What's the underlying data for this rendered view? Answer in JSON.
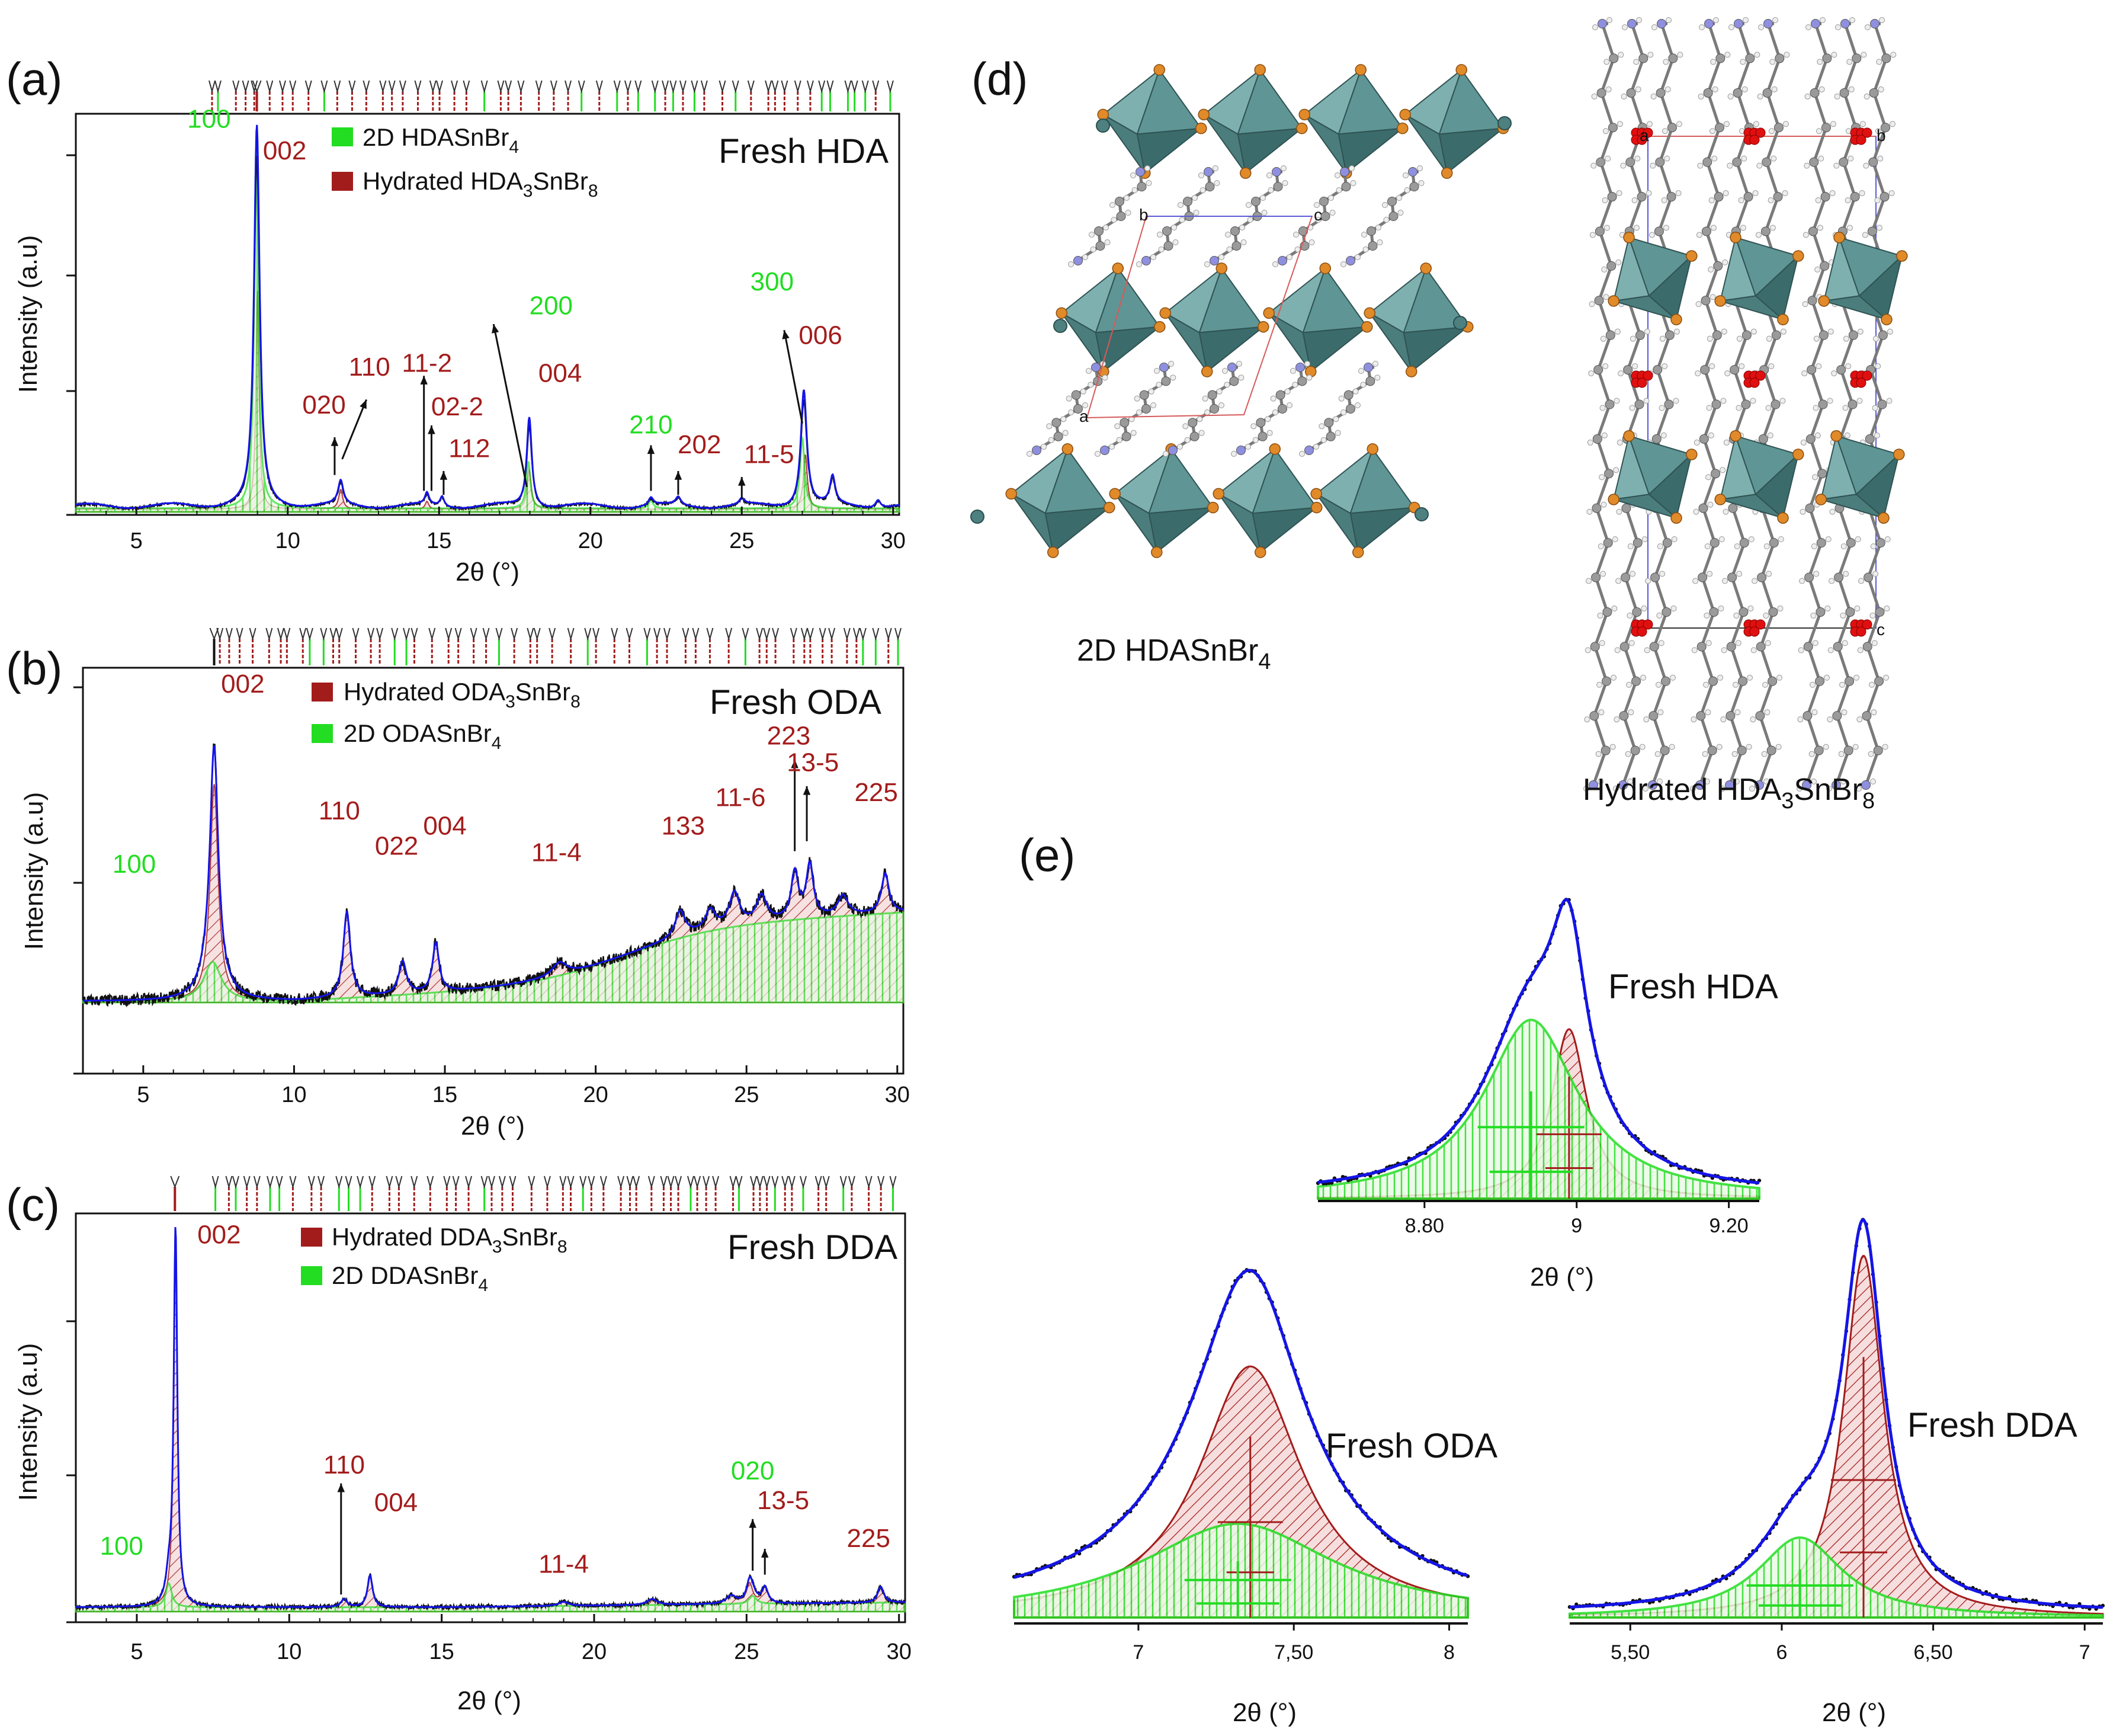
{
  "chart_data": [
    {
      "panel": "(a)",
      "type": "line",
      "title": "Fresh HDA",
      "xlabel": "2θ (°)",
      "ylabel": "Intensity (a.u)",
      "xlim": [
        3,
        30.2
      ],
      "ylim": [
        0,
        1.0
      ],
      "xticks": [
        "5",
        "10",
        "15",
        "20",
        "25",
        "30"
      ],
      "legend": {
        "position": "top-center",
        "items": [
          {
            "label": "2D HDASnBr",
            "sub": "4",
            "tail": "",
            "color": "#22dd22"
          },
          {
            "label": "Hydrated HDA",
            "sub": "3",
            "tail": "SnBr",
            "sub2": "8",
            "color": "#a31c1c"
          }
        ]
      },
      "peaks": [
        {
          "x": 8.98,
          "h": 0.97,
          "w": 0.11,
          "phase": "both"
        },
        {
          "x": 11.75,
          "h": 0.06,
          "w": 0.1,
          "phase": "red"
        },
        {
          "x": 14.6,
          "h": 0.03,
          "w": 0.08,
          "phase": "red"
        },
        {
          "x": 15.1,
          "h": 0.025,
          "w": 0.08,
          "phase": "red"
        },
        {
          "x": 17.98,
          "h": 0.23,
          "w": 0.1,
          "phase": "both"
        },
        {
          "x": 22.0,
          "h": 0.02,
          "w": 0.1,
          "phase": "green"
        },
        {
          "x": 22.9,
          "h": 0.02,
          "w": 0.1,
          "phase": "red"
        },
        {
          "x": 25.0,
          "h": 0.015,
          "w": 0.1,
          "phase": "red"
        },
        {
          "x": 27.05,
          "h": 0.3,
          "w": 0.12,
          "phase": "both"
        },
        {
          "x": 28.0,
          "h": 0.07,
          "w": 0.1,
          "phase": "red"
        },
        {
          "x": 29.5,
          "h": 0.02,
          "w": 0.1,
          "phase": "red"
        }
      ],
      "labels": [
        {
          "text": "100",
          "x": 7.4,
          "y": 0.965,
          "color": "green"
        },
        {
          "text": "002",
          "x": 9.9,
          "y": 0.885,
          "color": "red"
        },
        {
          "text": "020",
          "x": 11.2,
          "y": 0.245,
          "color": "red"
        },
        {
          "text": "110",
          "x": 12.7,
          "y": 0.34,
          "color": "red"
        },
        {
          "text": "11-2",
          "x": 14.6,
          "y": 0.35,
          "color": "red"
        },
        {
          "text": "02-2",
          "x": 15.6,
          "y": 0.24,
          "color": "red"
        },
        {
          "text": "112",
          "x": 16.0,
          "y": 0.135,
          "color": "red"
        },
        {
          "text": "200",
          "x": 18.7,
          "y": 0.495,
          "color": "green"
        },
        {
          "text": "004",
          "x": 19.0,
          "y": 0.325,
          "color": "red"
        },
        {
          "text": "210",
          "x": 22.0,
          "y": 0.195,
          "color": "green"
        },
        {
          "text": "202",
          "x": 23.6,
          "y": 0.145,
          "color": "red"
        },
        {
          "text": "11-5",
          "x": 25.9,
          "y": 0.12,
          "color": "red"
        },
        {
          "text": "300",
          "x": 26.0,
          "y": 0.555,
          "color": "green"
        },
        {
          "text": "006",
          "x": 27.6,
          "y": 0.42,
          "color": "red"
        }
      ],
      "arrows": [
        {
          "x": 11.55,
          "y0": 0.09,
          "y1": 0.185
        },
        {
          "x1": 11.8,
          "y1": 0.13,
          "x2": 12.6,
          "y2": 0.28
        },
        {
          "x": 14.5,
          "y0": 0.05,
          "y1": 0.34
        },
        {
          "x": 14.75,
          "y0": 0.05,
          "y1": 0.215
        },
        {
          "x": 15.15,
          "y0": 0.04,
          "y1": 0.1
        },
        {
          "x1": 17.9,
          "y1": 0.06,
          "x2": 16.8,
          "y2": 0.47
        },
        {
          "x": 22.0,
          "y0": 0.05,
          "y1": 0.165
        },
        {
          "x": 22.9,
          "y0": 0.04,
          "y1": 0.1
        },
        {
          "x": 25.0,
          "y0": 0.03,
          "y1": 0.085
        },
        {
          "x1": 27.0,
          "y1": 0.22,
          "x2": 26.4,
          "y2": 0.455
        }
      ],
      "annotation": "Fresh HDA"
    },
    {
      "panel": "(b)",
      "type": "line",
      "title": "Fresh ODA",
      "xlabel": "2θ (°)",
      "ylabel": "Intensity (a.u)",
      "xlim": [
        3,
        30.2
      ],
      "ylim": [
        0,
        1.0
      ],
      "xticks": [
        "5",
        "10",
        "15",
        "20",
        "25",
        "30"
      ],
      "legend": {
        "position": "top-center",
        "items": [
          {
            "label": "Hydrated ODA",
            "sub": "3",
            "tail": "SnBr",
            "sub2": "8",
            "color": "#a31c1c"
          },
          {
            "label": "2D ODASnBr",
            "sub": "4",
            "tail": "",
            "color": "#22dd22"
          }
        ]
      },
      "labels": [
        {
          "text": "002",
          "x": 8.3,
          "y": 0.925,
          "color": "red"
        },
        {
          "text": "100",
          "x": 4.7,
          "y": 0.385,
          "color": "green"
        },
        {
          "text": "110",
          "x": 11.5,
          "y": 0.545,
          "color": "red"
        },
        {
          "text": "022",
          "x": 13.4,
          "y": 0.44,
          "color": "red"
        },
        {
          "text": "004",
          "x": 15.0,
          "y": 0.5,
          "color": "red"
        },
        {
          "text": "11-4",
          "x": 18.7,
          "y": 0.42,
          "color": "red"
        },
        {
          "text": "133",
          "x": 22.9,
          "y": 0.5,
          "color": "red"
        },
        {
          "text": "11-6",
          "x": 24.8,
          "y": 0.585,
          "color": "red"
        },
        {
          "text": "223",
          "x": 26.4,
          "y": 0.77,
          "color": "red"
        },
        {
          "text": "13-5",
          "x": 27.2,
          "y": 0.69,
          "color": "red"
        },
        {
          "text": "225",
          "x": 29.3,
          "y": 0.6,
          "color": "red"
        }
      ],
      "arrows": [
        {
          "x": 26.6,
          "y0": 0.45,
          "y1": 0.725
        },
        {
          "x": 27.0,
          "y0": 0.48,
          "y1": 0.645
        }
      ],
      "annotation": "Fresh ODA"
    },
    {
      "panel": "(c)",
      "type": "line",
      "title": "Fresh DDA",
      "xlabel": "2θ (°)",
      "ylabel": "Intensity (a.u)",
      "xlim": [
        3,
        30.2
      ],
      "ylim": [
        0,
        1.0
      ],
      "xticks": [
        "5",
        "10",
        "15",
        "20",
        "25",
        "30"
      ],
      "legend": {
        "position": "top-center",
        "items": [
          {
            "label": "Hydrated DDA",
            "sub": "3",
            "tail": "SnBr",
            "sub2": "8",
            "color": "#a31c1c"
          },
          {
            "label": "2D DDASnBr",
            "sub": "4",
            "tail": "",
            "color": "#22dd22"
          }
        ]
      },
      "labels": [
        {
          "text": "002",
          "x": 7.7,
          "y": 0.925,
          "color": "red"
        },
        {
          "text": "100",
          "x": 4.5,
          "y": 0.14,
          "color": "green"
        },
        {
          "text": "110",
          "x": 11.8,
          "y": 0.345,
          "color": "red"
        },
        {
          "text": "004",
          "x": 13.5,
          "y": 0.25,
          "color": "red"
        },
        {
          "text": "11-4",
          "x": 19.0,
          "y": 0.095,
          "color": "red"
        },
        {
          "text": "020",
          "x": 25.2,
          "y": 0.33,
          "color": "green"
        },
        {
          "text": "13-5",
          "x": 26.2,
          "y": 0.255,
          "color": "red"
        },
        {
          "text": "225",
          "x": 29.0,
          "y": 0.16,
          "color": "red"
        }
      ],
      "arrows": [
        {
          "x": 11.7,
          "y0": 0.04,
          "y1": 0.32
        },
        {
          "x": 25.2,
          "y0": 0.1,
          "y1": 0.23
        },
        {
          "x": 25.6,
          "y0": 0.09,
          "y1": 0.155
        }
      ],
      "annotation": "Fresh DDA"
    },
    {
      "panel": "(e)",
      "type": "line",
      "title": "Fresh HDA",
      "xlabel": "2θ (°)",
      "xlim": [
        8.66,
        9.24
      ],
      "ylim": [
        0,
        1.0
      ],
      "xticks": [
        "8.80",
        "9",
        "9.20"
      ]
    },
    {
      "panel": "(e)",
      "type": "line",
      "title": "Fresh ODA",
      "xlabel": "2θ (°)",
      "xlim": [
        6.6,
        8.06
      ],
      "ylim": [
        0,
        1.0
      ],
      "xticks": [
        "7",
        "7,50",
        "8"
      ]
    },
    {
      "panel": "(e)",
      "type": "line",
      "title": "Fresh DDA",
      "xlabel": "2θ (°)",
      "xlim": [
        5.3,
        7.06
      ],
      "ylim": [
        0,
        1.0
      ],
      "xticks": [
        "5,50",
        "6",
        "6,50",
        "7"
      ]
    }
  ],
  "panel_labels": {
    "a": "(a)",
    "b": "(b)",
    "c": "(c)",
    "d": "(d)",
    "e": "(e)"
  },
  "structures": {
    "left": {
      "label": "2D HDASnBr",
      "sub": "4",
      "axis_labels": [
        "b",
        "c",
        "a"
      ]
    },
    "right": {
      "label": "Hydrated HDA",
      "sub": "3",
      "tail": "SnBr",
      "sub2": "8",
      "axis_labels": [
        "a",
        "b",
        "c"
      ]
    }
  },
  "colors": {
    "green": "#22dd22",
    "red": "#a31c1c",
    "blue": "#1414e6",
    "black": "#111111",
    "octahedron": "#5a8f8f",
    "bromine": "#e08a2a",
    "water": "#e01010",
    "nitrogen": "#8f8fe0"
  }
}
